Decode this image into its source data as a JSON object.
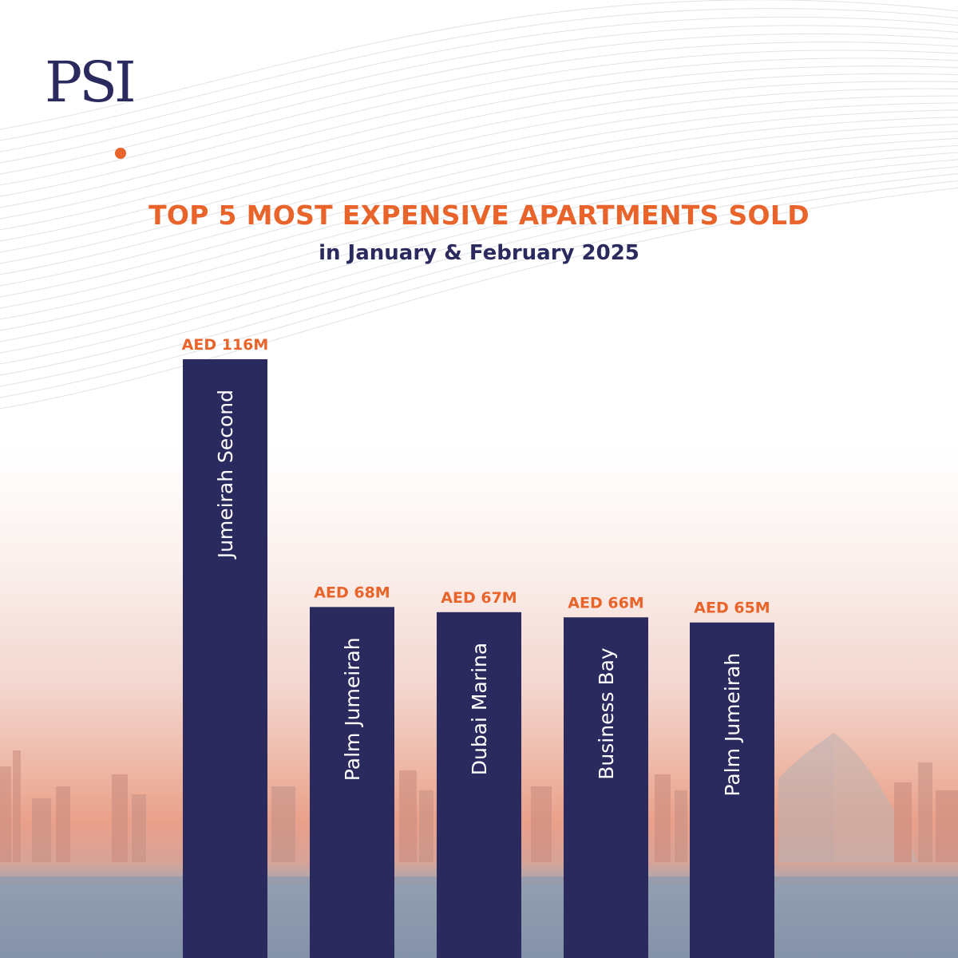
{
  "brand": {
    "logo_text": "PSI",
    "accent": "#e8642a",
    "primary": "#2b2a5e"
  },
  "header": {
    "title": "TOP 5 MOST EXPENSIVE APARTMENTS SOLD",
    "subtitle": "in January & February 2025"
  },
  "chart_data": {
    "type": "bar",
    "title": "TOP 5 MOST EXPENSIVE APARTMENTS SOLD",
    "subtitle": "in January & February 2025",
    "categories": [
      "Jumeirah Second",
      "Palm Jumeirah",
      "Dubai Marina",
      "Business Bay",
      "Palm Jumeirah"
    ],
    "values": [
      116,
      68,
      67,
      66,
      65
    ],
    "value_labels": [
      "AED 116M",
      "AED 68M",
      "AED 67M",
      "AED 66M",
      "AED 65M"
    ],
    "unit": "AED million",
    "grid": false,
    "legend": "none",
    "colors": {
      "bar": "#2b2a5e",
      "value_label": "#e8642a",
      "category_label": "#ffffff"
    }
  }
}
